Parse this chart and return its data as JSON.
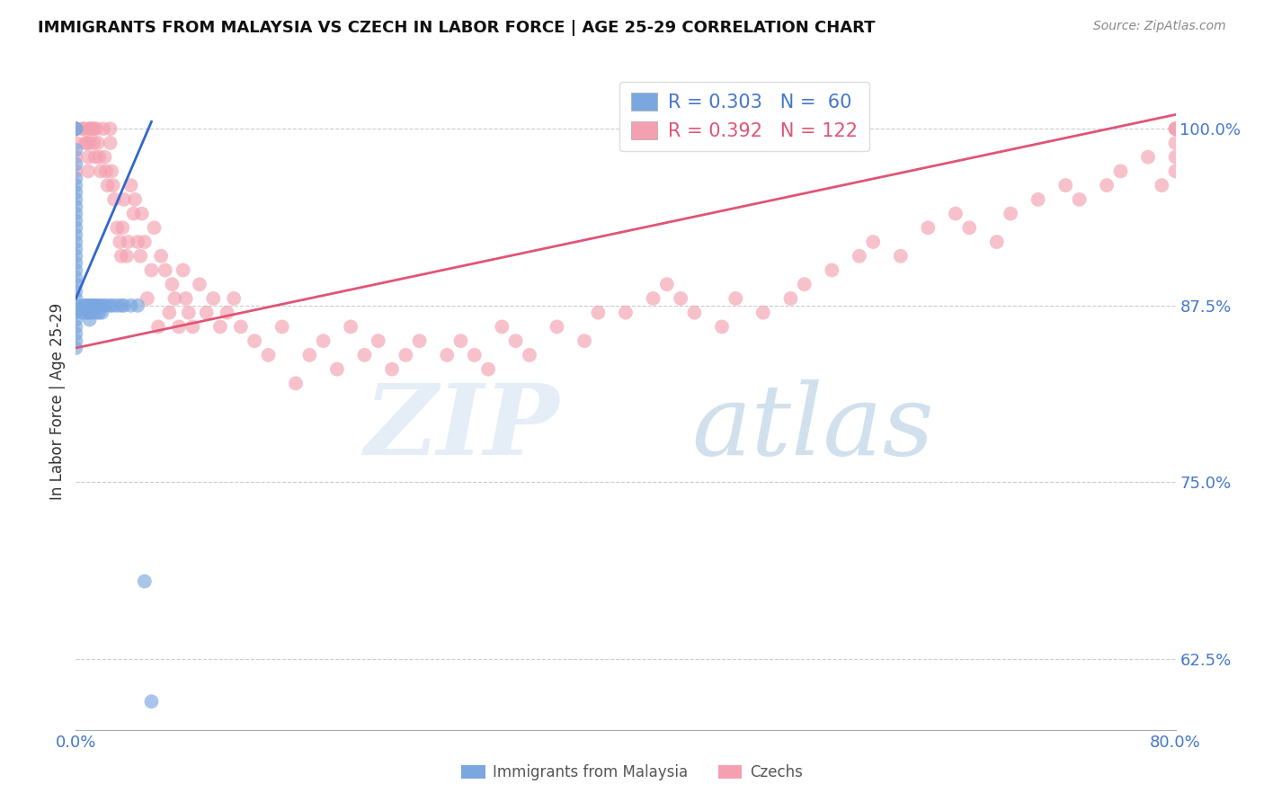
{
  "title": "IMMIGRANTS FROM MALAYSIA VS CZECH IN LABOR FORCE | AGE 25-29 CORRELATION CHART",
  "source": "Source: ZipAtlas.com",
  "ylabel": "In Labor Force | Age 25-29",
  "xlim": [
    0.0,
    0.8
  ],
  "ylim": [
    0.575,
    1.04
  ],
  "malaysia_R": 0.303,
  "malaysia_N": 60,
  "czech_R": 0.392,
  "czech_N": 122,
  "malaysia_color": "#7ba7e0",
  "czech_color": "#f4a0b0",
  "malaysia_line_color": "#3366cc",
  "czech_line_color": "#e05575",
  "malaysia_x": [
    0.0,
    0.0,
    0.0,
    0.0,
    0.0,
    0.0,
    0.0,
    0.0,
    0.0,
    0.0,
    0.0,
    0.0,
    0.0,
    0.0,
    0.0,
    0.0,
    0.0,
    0.0,
    0.0,
    0.0,
    0.0,
    0.0,
    0.0,
    0.0,
    0.0,
    0.0,
    0.0,
    0.0,
    0.0,
    0.0,
    0.005,
    0.005,
    0.007,
    0.008,
    0.008,
    0.009,
    0.009,
    0.01,
    0.01,
    0.01,
    0.012,
    0.012,
    0.013,
    0.015,
    0.015,
    0.016,
    0.017,
    0.018,
    0.019,
    0.02,
    0.022,
    0.025,
    0.027,
    0.03,
    0.033,
    0.035,
    0.04,
    0.045,
    0.05,
    0.055
  ],
  "malaysia_y": [
    1.0,
    1.0,
    0.985,
    0.975,
    0.965,
    0.96,
    0.955,
    0.95,
    0.945,
    0.94,
    0.935,
    0.93,
    0.925,
    0.92,
    0.915,
    0.91,
    0.905,
    0.9,
    0.895,
    0.89,
    0.885,
    0.88,
    0.875,
    0.872,
    0.87,
    0.865,
    0.86,
    0.855,
    0.85,
    0.845,
    0.875,
    0.87,
    0.875,
    0.875,
    0.87,
    0.875,
    0.87,
    0.875,
    0.87,
    0.865,
    0.875,
    0.87,
    0.875,
    0.875,
    0.87,
    0.875,
    0.87,
    0.875,
    0.87,
    0.875,
    0.875,
    0.875,
    0.875,
    0.875,
    0.875,
    0.875,
    0.875,
    0.875,
    0.68,
    0.595
  ],
  "czech_x": [
    0.0,
    0.0,
    0.0,
    0.0,
    0.0,
    0.0,
    0.005,
    0.006,
    0.007,
    0.008,
    0.009,
    0.009,
    0.01,
    0.01,
    0.01,
    0.012,
    0.013,
    0.013,
    0.014,
    0.015,
    0.016,
    0.017,
    0.018,
    0.02,
    0.021,
    0.022,
    0.023,
    0.025,
    0.025,
    0.026,
    0.027,
    0.028,
    0.03,
    0.032,
    0.033,
    0.034,
    0.035,
    0.037,
    0.038,
    0.04,
    0.042,
    0.043,
    0.045,
    0.047,
    0.048,
    0.05,
    0.052,
    0.055,
    0.057,
    0.06,
    0.062,
    0.065,
    0.068,
    0.07,
    0.072,
    0.075,
    0.078,
    0.08,
    0.082,
    0.085,
    0.09,
    0.095,
    0.1,
    0.105,
    0.11,
    0.115,
    0.12,
    0.13,
    0.14,
    0.15,
    0.16,
    0.17,
    0.18,
    0.19,
    0.2,
    0.21,
    0.22,
    0.23,
    0.24,
    0.25,
    0.27,
    0.28,
    0.29,
    0.3,
    0.31,
    0.32,
    0.33,
    0.35,
    0.37,
    0.38,
    0.4,
    0.42,
    0.43,
    0.44,
    0.45,
    0.47,
    0.48,
    0.5,
    0.52,
    0.53,
    0.55,
    0.57,
    0.58,
    0.6,
    0.62,
    0.64,
    0.65,
    0.67,
    0.68,
    0.7,
    0.72,
    0.73,
    0.75,
    0.76,
    0.78,
    0.79,
    0.8,
    0.8,
    0.8,
    0.8,
    0.8,
    0.8
  ],
  "czech_y": [
    1.0,
    1.0,
    1.0,
    0.99,
    0.98,
    0.97,
    1.0,
    1.0,
    0.99,
    0.99,
    0.98,
    0.97,
    1.0,
    1.0,
    0.99,
    1.0,
    1.0,
    0.99,
    0.98,
    1.0,
    0.99,
    0.98,
    0.97,
    1.0,
    0.98,
    0.97,
    0.96,
    1.0,
    0.99,
    0.97,
    0.96,
    0.95,
    0.93,
    0.92,
    0.91,
    0.93,
    0.95,
    0.91,
    0.92,
    0.96,
    0.94,
    0.95,
    0.92,
    0.91,
    0.94,
    0.92,
    0.88,
    0.9,
    0.93,
    0.86,
    0.91,
    0.9,
    0.87,
    0.89,
    0.88,
    0.86,
    0.9,
    0.88,
    0.87,
    0.86,
    0.89,
    0.87,
    0.88,
    0.86,
    0.87,
    0.88,
    0.86,
    0.85,
    0.84,
    0.86,
    0.82,
    0.84,
    0.85,
    0.83,
    0.86,
    0.84,
    0.85,
    0.83,
    0.84,
    0.85,
    0.84,
    0.85,
    0.84,
    0.83,
    0.86,
    0.85,
    0.84,
    0.86,
    0.85,
    0.87,
    0.87,
    0.88,
    0.89,
    0.88,
    0.87,
    0.86,
    0.88,
    0.87,
    0.88,
    0.89,
    0.9,
    0.91,
    0.92,
    0.91,
    0.93,
    0.94,
    0.93,
    0.92,
    0.94,
    0.95,
    0.96,
    0.95,
    0.96,
    0.97,
    0.98,
    0.96,
    0.97,
    0.98,
    0.99,
    1.0,
    1.0,
    1.0
  ],
  "mal_line_x": [
    0.0,
    0.055
  ],
  "mal_line_y": [
    0.88,
    1.005
  ],
  "cz_line_x": [
    0.0,
    0.8
  ],
  "cz_line_y": [
    0.845,
    1.01
  ]
}
